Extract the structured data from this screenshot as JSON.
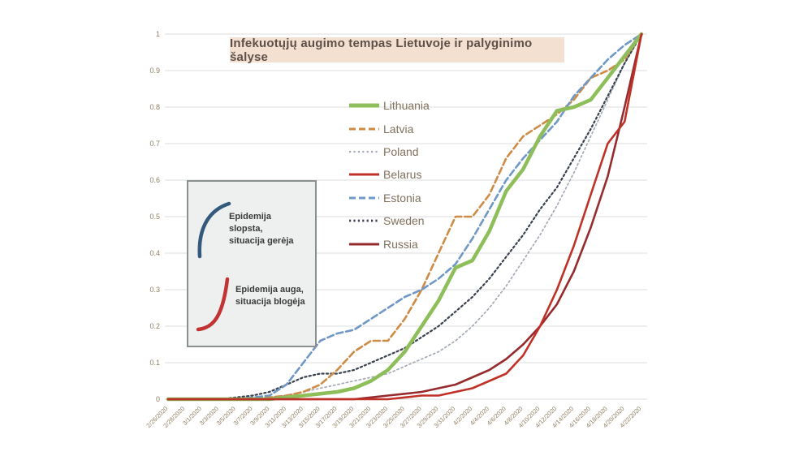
{
  "title": "Infekuotųjų augimo tempas Lietuvoje ir palyginimo šalyse",
  "annotation_box": {
    "improving_label": "Epidemija\nslopsta,\nsituacija gerėja",
    "worsening_label": "Epidemija auga,\nsituacija blogėja",
    "improving_color": "#33597d",
    "worsening_color": "#c23434"
  },
  "axes": {
    "ytick_labels": [
      "0",
      "0.1",
      "0.2",
      "0.3",
      "0.4",
      "0.5",
      "0.6",
      "0.7",
      "0.8",
      "0.9",
      "1"
    ],
    "grid_color": "#dcdcdc",
    "label_color": "#8f7e62"
  },
  "chart_data": {
    "type": "line",
    "title": "Infekuotųjų augimo tempas Lietuvoje ir palyginimo šalyse",
    "xlabel": "",
    "ylabel": "",
    "ylim": [
      0,
      1
    ],
    "grid": true,
    "legend_position": "upper-center-left",
    "categories": [
      "2/26/2020",
      "2/28/2020",
      "3/1/2020",
      "3/3/2020",
      "3/5/2020",
      "3/7/2020",
      "3/9/2020",
      "3/11/2020",
      "3/13/2020",
      "3/15/2020",
      "3/17/2020",
      "3/19/2020",
      "3/21/2020",
      "3/23/2020",
      "3/25/2020",
      "3/27/2020",
      "3/29/2020",
      "3/31/2020",
      "4/2/2020",
      "4/4/2020",
      "4/6/2020",
      "4/8/2020",
      "4/10/2020",
      "4/12/2020",
      "4/14/2020",
      "4/16/2020",
      "4/18/2020",
      "4/20/2020",
      "4/22/2020"
    ],
    "series": [
      {
        "name": "Lithuania",
        "color": "#8dbe5a",
        "style": "solid",
        "width": 4.5,
        "values": [
          0,
          0,
          0,
          0,
          0,
          0,
          0,
          0.005,
          0.01,
          0.015,
          0.02,
          0.03,
          0.05,
          0.08,
          0.13,
          0.2,
          0.27,
          0.36,
          0.38,
          0.46,
          0.57,
          0.63,
          0.72,
          0.79,
          0.8,
          0.82,
          0.88,
          0.94,
          1
        ]
      },
      {
        "name": "Latvia",
        "color": "#cd8b45",
        "style": "dashed",
        "width": 2.6,
        "values": [
          0,
          0,
          0,
          0,
          0,
          0,
          0.005,
          0.01,
          0.02,
          0.04,
          0.08,
          0.13,
          0.16,
          0.16,
          0.22,
          0.3,
          0.4,
          0.5,
          0.5,
          0.56,
          0.66,
          0.72,
          0.75,
          0.78,
          0.82,
          0.88,
          0.9,
          0.93,
          1
        ]
      },
      {
        "name": "Poland",
        "color": "#a3aab6",
        "style": "dotted",
        "width": 1.7,
        "values": [
          0,
          0,
          0,
          0,
          0,
          0,
          0.005,
          0.01,
          0.02,
          0.03,
          0.04,
          0.05,
          0.06,
          0.07,
          0.09,
          0.11,
          0.13,
          0.16,
          0.2,
          0.25,
          0.31,
          0.38,
          0.45,
          0.53,
          0.62,
          0.72,
          0.82,
          0.92,
          1
        ]
      },
      {
        "name": "Belarus",
        "color": "#bf3127",
        "style": "solid",
        "width": 2.6,
        "values": [
          0,
          0,
          0,
          0,
          0,
          0,
          0,
          0,
          0,
          0,
          0,
          0,
          0,
          0,
          0.005,
          0.01,
          0.01,
          0.02,
          0.03,
          0.05,
          0.07,
          0.12,
          0.2,
          0.3,
          0.42,
          0.56,
          0.7,
          0.76,
          1
        ]
      },
      {
        "name": "Estonia",
        "color": "#6f98c5",
        "style": "dashed",
        "width": 2.6,
        "values": [
          0,
          0,
          0,
          0,
          0,
          0.005,
          0.01,
          0.04,
          0.1,
          0.16,
          0.18,
          0.19,
          0.22,
          0.25,
          0.28,
          0.3,
          0.33,
          0.37,
          0.44,
          0.52,
          0.6,
          0.66,
          0.71,
          0.76,
          0.83,
          0.88,
          0.93,
          0.97,
          1
        ]
      },
      {
        "name": "Sweden",
        "color": "#39414f",
        "style": "dotted",
        "width": 2.2,
        "values": [
          0,
          0,
          0,
          0,
          0.005,
          0.01,
          0.02,
          0.04,
          0.06,
          0.07,
          0.07,
          0.08,
          0.1,
          0.12,
          0.14,
          0.17,
          0.2,
          0.24,
          0.28,
          0.33,
          0.39,
          0.45,
          0.52,
          0.58,
          0.66,
          0.74,
          0.83,
          0.92,
          1
        ]
      },
      {
        "name": "Russia",
        "color": "#962b2e",
        "style": "solid",
        "width": 2.6,
        "values": [
          0,
          0,
          0,
          0,
          0,
          0,
          0,
          0,
          0,
          0,
          0,
          0,
          0.005,
          0.01,
          0.015,
          0.02,
          0.03,
          0.04,
          0.06,
          0.08,
          0.11,
          0.15,
          0.2,
          0.26,
          0.35,
          0.47,
          0.61,
          0.8,
          1
        ]
      }
    ]
  }
}
